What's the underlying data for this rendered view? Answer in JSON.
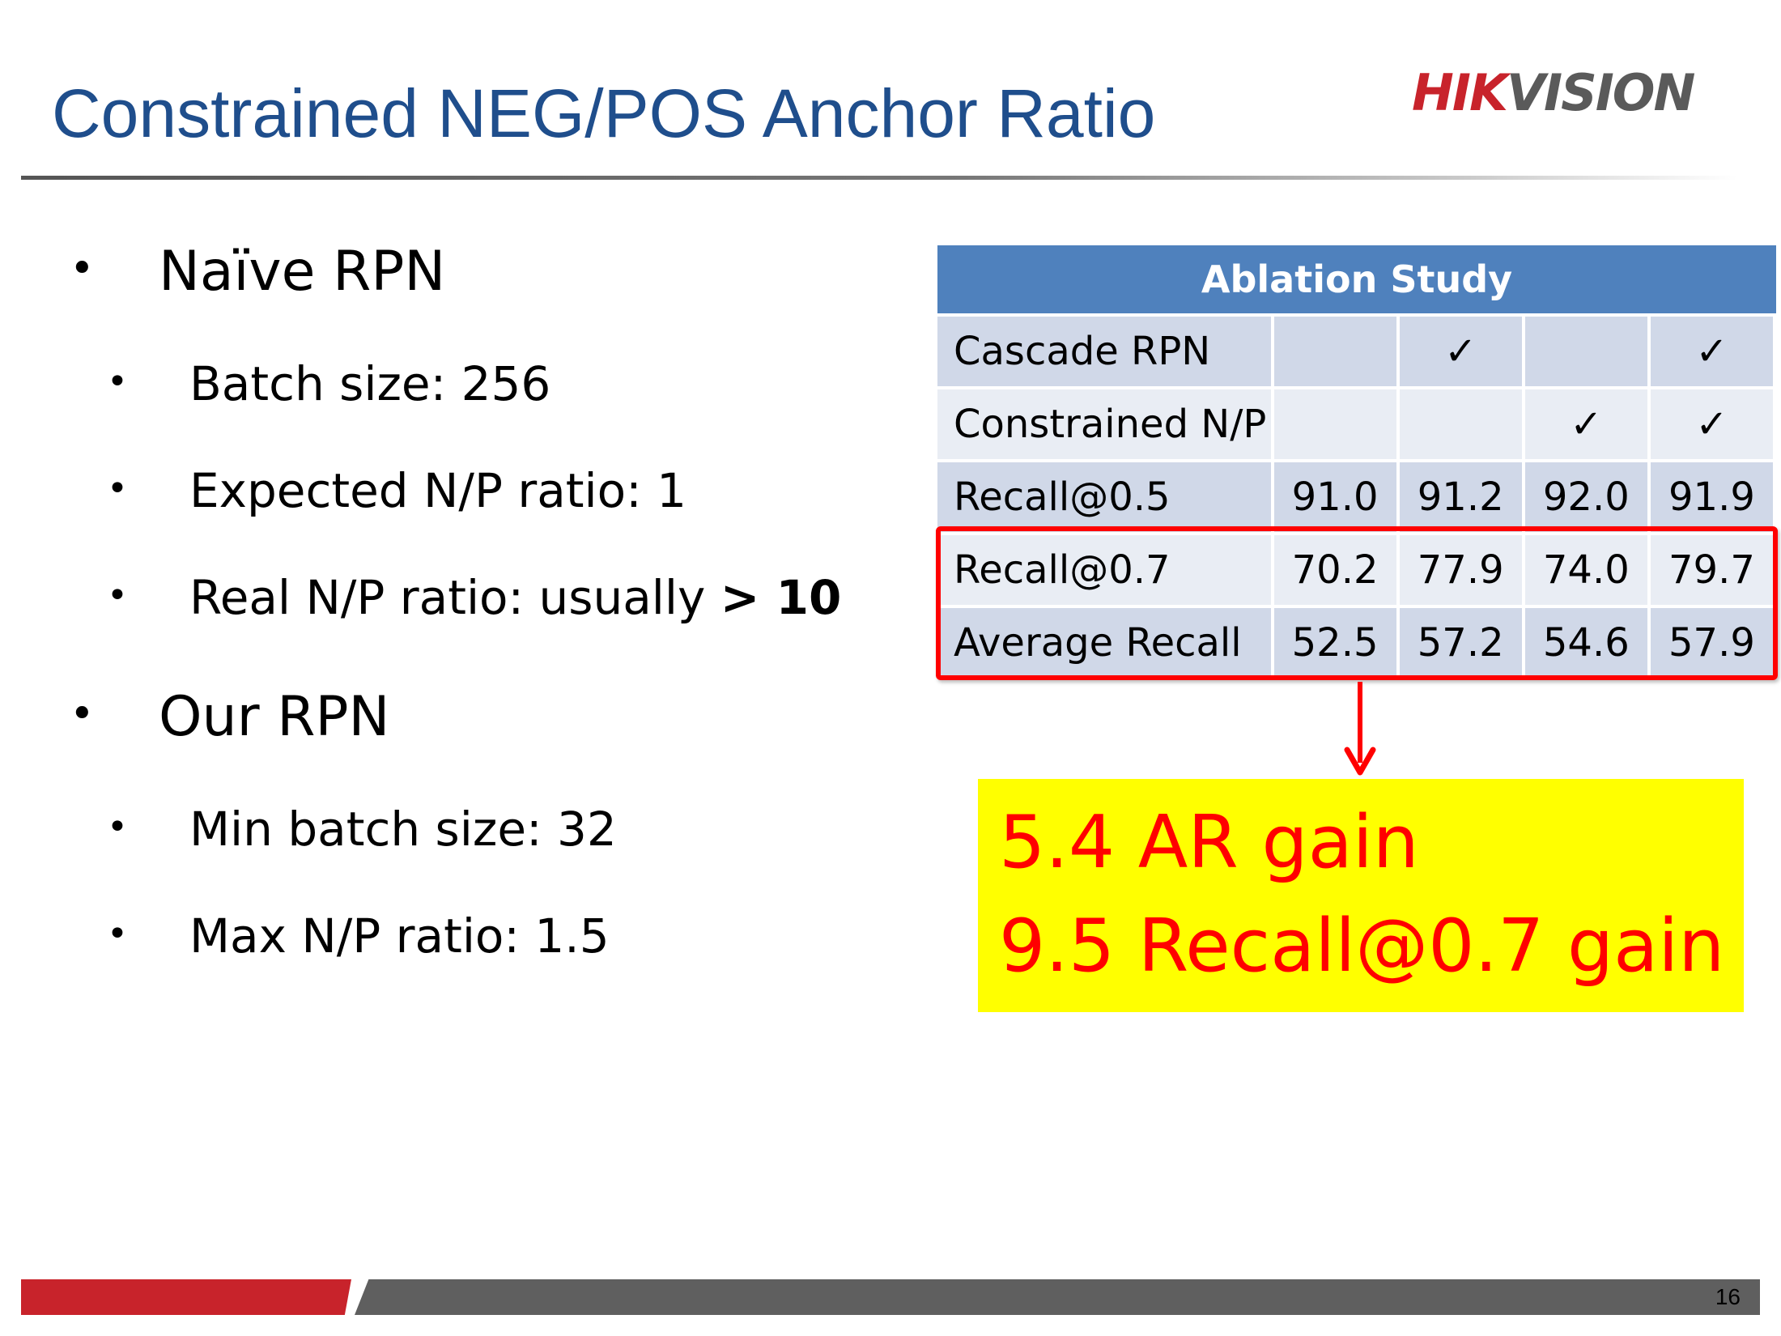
{
  "slide": {
    "title": "Constrained NEG/POS Anchor Ratio",
    "page_number": "16"
  },
  "logo": {
    "part1": "HIK",
    "part2": "VISION",
    "colors": {
      "part1": "#c8232b",
      "part2": "#5a5a5a"
    }
  },
  "bullets": {
    "naive": {
      "heading": "Naïve RPN",
      "items": [
        "Batch size: 256",
        "Expected N/P ratio: 1"
      ],
      "real_prefix": "Real N/P ratio: usually ",
      "real_bold": "> 10"
    },
    "ours": {
      "heading": "Our RPN",
      "items": [
        "Min batch size: 32",
        "Max N/P ratio: 1.5"
      ]
    },
    "bullet_glyph": "•"
  },
  "table": {
    "title": "Ablation Study",
    "rows": [
      {
        "label": "Cascade RPN",
        "cells": [
          "",
          "✓",
          "",
          "✓"
        ]
      },
      {
        "label": "Constrained N/P",
        "cells": [
          "",
          "",
          "✓",
          "✓"
        ]
      },
      {
        "label": "Recall@0.5",
        "cells": [
          "91.0",
          "91.2",
          "92.0",
          "91.9"
        ]
      },
      {
        "label": "Recall@0.7",
        "cells": [
          "70.2",
          "77.9",
          "74.0",
          "79.7"
        ]
      },
      {
        "label": "Average Recall",
        "cells": [
          "52.5",
          "57.2",
          "54.6",
          "57.9"
        ]
      }
    ],
    "colors": {
      "header": "#4f81bd",
      "row_dark": "#d0d8e8",
      "row_light": "#e9edf4"
    }
  },
  "callout": {
    "line1": "5.4 AR gain",
    "line2": "9.5 Recall@0.7 gain",
    "colors": {
      "background": "#ffff00",
      "text": "#ff0000",
      "highlight_border": "#ff0000"
    }
  },
  "theme": {
    "title_color": "#1f4e8c",
    "footer_red": "#c8232b",
    "footer_gray": "#5f5f5f"
  }
}
